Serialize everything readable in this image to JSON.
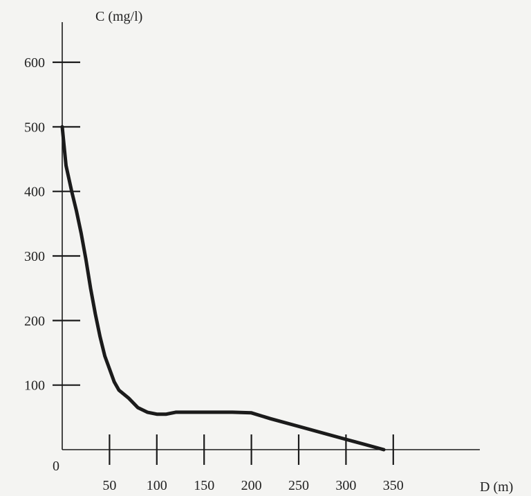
{
  "chart_data": {
    "type": "line",
    "ylabel": "C (mg/l)",
    "xlabel": "D (m)",
    "origin_label": "0",
    "xlim": [
      0,
      380
    ],
    "ylim": [
      0,
      650
    ],
    "x_ticks": [
      50,
      100,
      150,
      200,
      250,
      300,
      350
    ],
    "y_ticks": [
      100,
      200,
      300,
      400,
      500,
      600
    ],
    "grid": false,
    "series": [
      {
        "x": [
          0,
          2,
          4,
          7,
          10,
          15,
          20,
          25,
          30,
          35,
          40,
          45,
          50,
          55,
          60,
          70,
          80,
          90,
          100,
          110,
          120,
          140,
          160,
          180,
          200,
          220,
          250,
          280,
          300,
          320,
          340
        ],
        "y": [
          500,
          470,
          440,
          420,
          400,
          370,
          335,
          295,
          250,
          210,
          175,
          145,
          125,
          105,
          92,
          80,
          65,
          58,
          55,
          55,
          58,
          58,
          58,
          58,
          57,
          48,
          36,
          24,
          16,
          8,
          0
        ],
        "color": "#1b1b1b"
      }
    ]
  }
}
